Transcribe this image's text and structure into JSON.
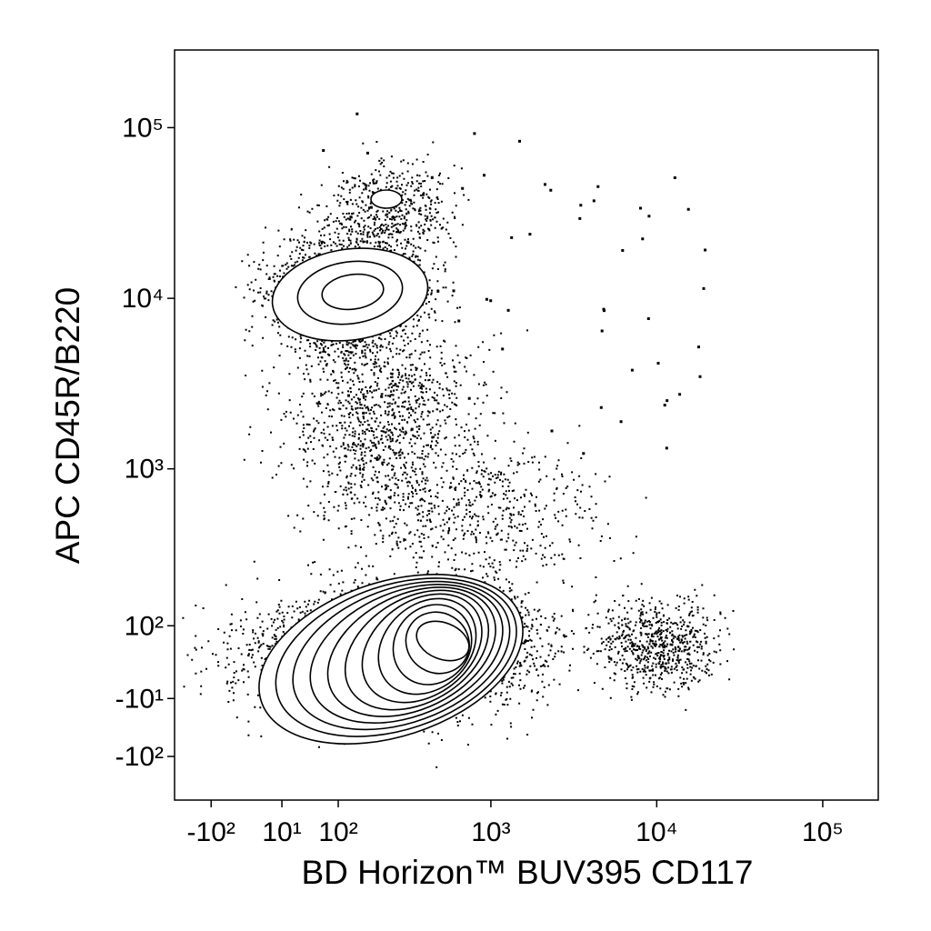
{
  "chart_data": {
    "type": "contour",
    "xlabel": "BD Horizon™ BUV395 CD117",
    "ylabel": "APC CD45R/B220",
    "xscale": "biexponential",
    "yscale": "biexponential",
    "xlim": [
      -188,
      216000
    ],
    "ylim": [
      -206,
      285000
    ],
    "xticks": [
      {
        "value": -100,
        "label": "-10²"
      },
      {
        "value": 10,
        "label": "10¹"
      },
      {
        "value": 100,
        "label": "10²"
      },
      {
        "value": 1000,
        "label": "10³"
      },
      {
        "value": 10000,
        "label": "10⁴"
      },
      {
        "value": 100000,
        "label": "10⁵"
      }
    ],
    "yticks": [
      {
        "value": 100000,
        "label": "10⁵"
      },
      {
        "value": 10000,
        "label": "10⁴"
      },
      {
        "value": 1000,
        "label": "10³"
      },
      {
        "value": 100,
        "label": "10²"
      },
      {
        "value": -10,
        "label": "-10¹"
      },
      {
        "value": -100,
        "label": "-10²"
      }
    ],
    "color": "#000000"
  }
}
